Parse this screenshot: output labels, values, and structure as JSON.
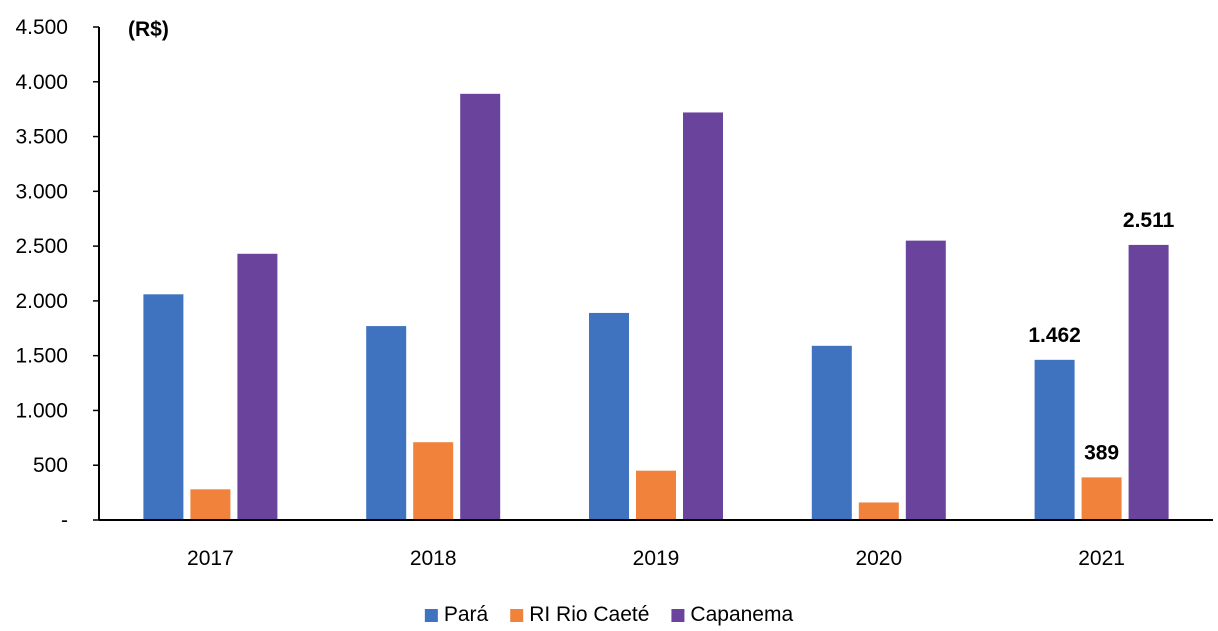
{
  "chart_data": {
    "type": "bar",
    "unit_label": "(R$)",
    "categories": [
      "2017",
      "2018",
      "2019",
      "2020",
      "2021"
    ],
    "series": [
      {
        "name": "Pará",
        "color": "#3f73bf",
        "values": [
          2060,
          1770,
          1890,
          1590,
          1462
        ]
      },
      {
        "name": "RI Rio Caeté",
        "color": "#f0823c",
        "values": [
          280,
          710,
          450,
          160,
          389
        ]
      },
      {
        "name": "Capanema",
        "color": "#6a449c",
        "values": [
          2430,
          3890,
          3720,
          2550,
          2511
        ]
      }
    ],
    "ylim": [
      0,
      4500
    ],
    "y_ticks": [
      {
        "value": 0,
        "label": "-"
      },
      {
        "value": 500,
        "label": "500"
      },
      {
        "value": 1000,
        "label": "1.000"
      },
      {
        "value": 1500,
        "label": "1.500"
      },
      {
        "value": 2000,
        "label": "2.000"
      },
      {
        "value": 2500,
        "label": "2.500"
      },
      {
        "value": 3000,
        "label": "3.000"
      },
      {
        "value": 3500,
        "label": "3.500"
      },
      {
        "value": 4000,
        "label": "4.000"
      },
      {
        "value": 4500,
        "label": "4.500"
      }
    ],
    "data_labels": [
      {
        "series": 0,
        "category": 4,
        "text": "1.462"
      },
      {
        "series": 1,
        "category": 4,
        "text": "389"
      },
      {
        "series": 2,
        "category": 4,
        "text": "2.511"
      }
    ],
    "grid": false,
    "legend_position": "bottom"
  }
}
